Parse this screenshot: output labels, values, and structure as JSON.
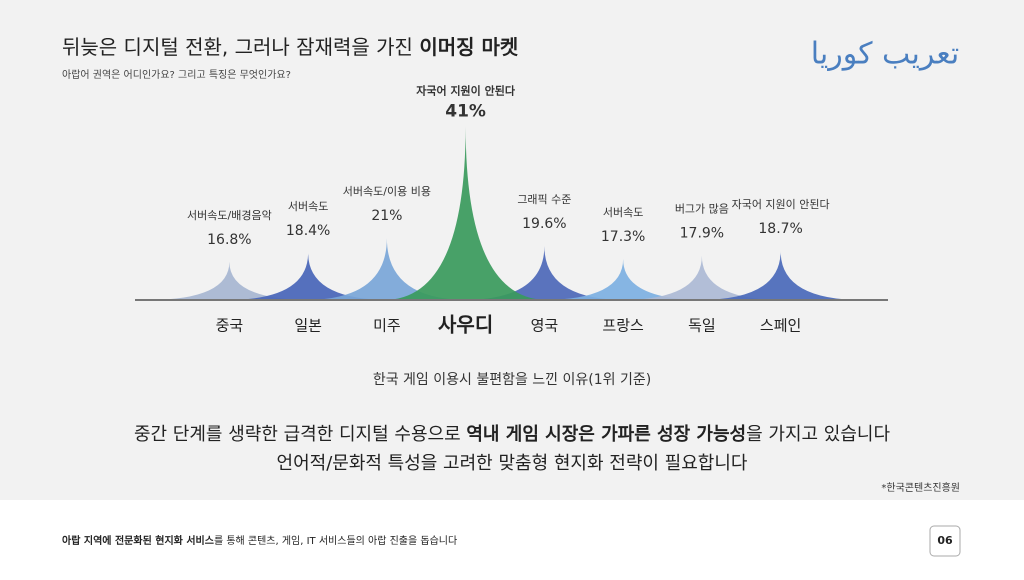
{
  "header": {
    "title": "뒤늦은 디지털 전환, 그러나 잠재력을 가진",
    "title_emphasis": "이머징 마켓",
    "subtitle": "아랍어 권역은 어디인가요? 그리고 특징은 무엇인가요?",
    "logo": "تعريب كوريا"
  },
  "chart_data": {
    "type": "peak",
    "categories": [
      "중국",
      "일본",
      "미주",
      "사우디",
      "영국",
      "프랑스",
      "독일",
      "스페인"
    ],
    "reasons": [
      "서버속도/배경음악",
      "서버속도",
      "서버속도/이용 비용",
      "자국어 지원이 안된다",
      "그래픽 수준",
      "서버속도",
      "버그가 많음",
      "자국어 지원이 안된다"
    ],
    "values": [
      16.8,
      18.4,
      21,
      41,
      19.6,
      17.3,
      17.9,
      18.7
    ],
    "value_labels": [
      "16.8%",
      "18.4%",
      "21%",
      "41%",
      "19.6%",
      "17.3%",
      "17.9%",
      "18.7%"
    ],
    "colors": [
      "#a7b6d1",
      "#4865b8",
      "#7aa6d8",
      "#3a9a5c",
      "#4d68b9",
      "#7db0e2",
      "#adbad5",
      "#4a69ba"
    ],
    "highlight": 3,
    "ylim": [
      10,
      42
    ],
    "xlabel": "한국 게임 이용시 불편함을 느낀 이유(1위 기준)"
  },
  "summary": {
    "line1_start": "중간 단계를 생략한 급격한 디지털 수용으로 ",
    "line1_emphasis": "역내 게임 시장은 가파른 성장 가능성",
    "line1_end": "을 가지고 있습니다",
    "line2": "언어적/문화적 특성을 고려한 맞춤형 현지화 전략이 필요합니다",
    "source": "*한국콘텐츠진흥원"
  },
  "footer": {
    "emphasis": "아랍 지역에 전문화된 현지화 서비스",
    "text": "를 통해 콘텐츠, 게임, IT 서비스들의 아랍 진출을 돕습니다",
    "page": "06"
  }
}
